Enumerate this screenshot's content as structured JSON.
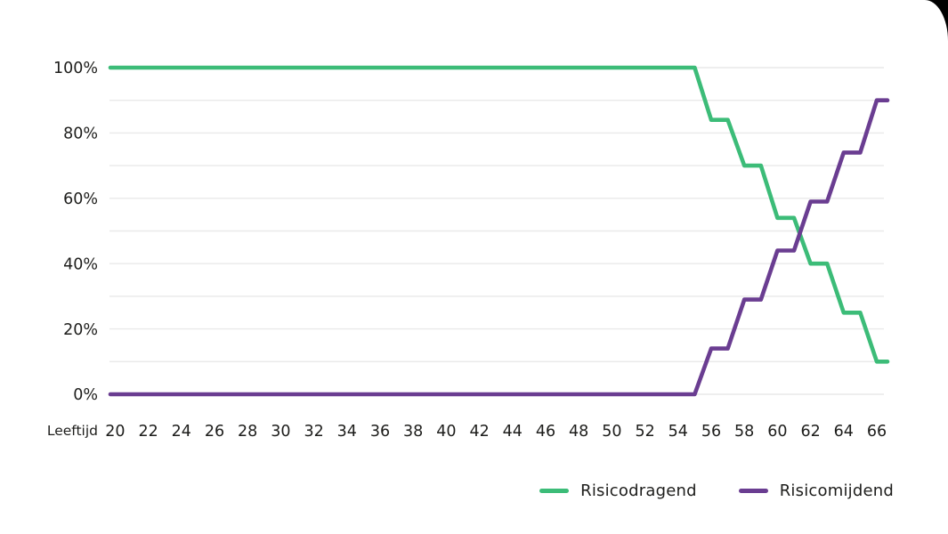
{
  "page": {
    "background": "#ffffff",
    "corner_cut_color": "#000000",
    "text_color": "#1d1d1b",
    "gridline_color": "#e9e9e9"
  },
  "chart_data": {
    "type": "line",
    "style": "stepped-glidepath",
    "title": "",
    "xlabel": "Leeftijd",
    "ylabel": "",
    "x_ticks": [
      20,
      22,
      24,
      26,
      28,
      30,
      32,
      34,
      36,
      38,
      40,
      42,
      44,
      46,
      48,
      50,
      52,
      54,
      56,
      58,
      60,
      62,
      64,
      66
    ],
    "x_range": [
      20,
      66
    ],
    "ylim": [
      0,
      100
    ],
    "grid": true,
    "grid_step": 10,
    "y_ticks": [
      {
        "value": 0,
        "label": "0%"
      },
      {
        "value": 20,
        "label": "20%"
      },
      {
        "value": 40,
        "label": "40%"
      },
      {
        "value": 60,
        "label": "60%"
      },
      {
        "value": 80,
        "label": "80%"
      },
      {
        "value": 100,
        "label": "100%"
      }
    ],
    "legend_position": "bottom-right",
    "series": [
      {
        "name": "Risicodragend",
        "color": "#3cbc78",
        "points": [
          [
            20,
            100
          ],
          [
            55,
            100
          ],
          [
            56,
            84
          ],
          [
            57,
            84
          ],
          [
            58,
            70
          ],
          [
            59,
            70
          ],
          [
            60,
            54
          ],
          [
            61,
            54
          ],
          [
            62,
            40
          ],
          [
            63,
            40
          ],
          [
            64,
            25
          ],
          [
            65,
            25
          ],
          [
            66,
            10
          ]
        ]
      },
      {
        "name": "Risicomijdend",
        "color": "#6a3d91",
        "points": [
          [
            20,
            0
          ],
          [
            55,
            0
          ],
          [
            56,
            14
          ],
          [
            57,
            14
          ],
          [
            58,
            29
          ],
          [
            59,
            29
          ],
          [
            60,
            44
          ],
          [
            61,
            44
          ],
          [
            62,
            59
          ],
          [
            63,
            59
          ],
          [
            64,
            74
          ],
          [
            65,
            74
          ],
          [
            66,
            90
          ]
        ]
      }
    ]
  }
}
